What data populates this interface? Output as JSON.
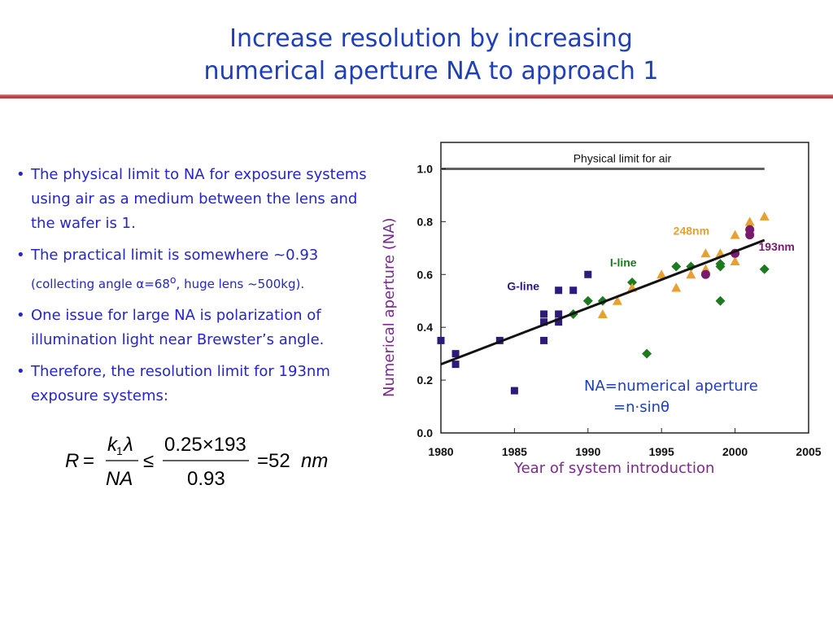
{
  "slide": {
    "title_line1": "Increase resolution by increasing",
    "title_line2": "numerical aperture NA to approach 1"
  },
  "bullets": [
    {
      "text": "The physical limit to NA for exposure systems using air as a medium between the lens and the wafer is 1."
    },
    {
      "text": "The  practical limit is somewhere ~0.93",
      "sub_pre": "(collecting angle ",
      "alpha": "α",
      "sub_mid": "=68",
      "sup": "o",
      "sub_post": ", huge lens ~500kg)."
    },
    {
      "text": "One issue for large NA is polarization of illumination light near Brewster’s angle."
    },
    {
      "text": "Therefore, the resolution limit for 193nm exposure systems:"
    }
  ],
  "formula": {
    "R": "R",
    "eq": "=",
    "k": "k",
    "k_sub": "1",
    "lambda": "λ",
    "NA": "NA",
    "le": "≤",
    "num": "0.25×193",
    "den": "0.93",
    "result": "=52",
    "unit": "nm"
  },
  "axis_labels": {
    "y": "Numerical aperture (NA)",
    "x": "Year of system introduction"
  },
  "note": {
    "line1": "NA=numerical aperture",
    "line2_pre": "=n·sin",
    "theta": "θ"
  },
  "chart_data": {
    "type": "scatter",
    "xlim": [
      1980,
      2005
    ],
    "ylim": [
      0.0,
      1.1
    ],
    "x_ticks": [
      1980,
      1985,
      1990,
      1995,
      2000,
      2005
    ],
    "y_ticks": [
      0.0,
      0.2,
      0.4,
      0.6,
      0.8,
      1.0
    ],
    "reference_line": {
      "label": "Physical limit for air",
      "y": 1.0
    },
    "trend_line": {
      "x": [
        1980,
        2002
      ],
      "y": [
        0.26,
        0.73
      ]
    },
    "series": [
      {
        "name": "G-line",
        "marker": "square",
        "color": "#2e1a78",
        "x": [
          1980,
          1981,
          1981,
          1984,
          1985,
          1987,
          1987,
          1987,
          1988,
          1988,
          1988,
          1989,
          1990
        ],
        "y": [
          0.35,
          0.3,
          0.26,
          0.35,
          0.16,
          0.45,
          0.42,
          0.35,
          0.54,
          0.45,
          0.42,
          0.54,
          0.6
        ]
      },
      {
        "name": "I-line",
        "marker": "diamond",
        "color": "#1e7a1e",
        "x": [
          1989,
          1990,
          1991,
          1993,
          1994,
          1996,
          1997,
          1999,
          1999,
          1999,
          2002
        ],
        "y": [
          0.45,
          0.5,
          0.5,
          0.57,
          0.3,
          0.63,
          0.63,
          0.63,
          0.64,
          0.5,
          0.62
        ]
      },
      {
        "name": "248nm",
        "marker": "triangle",
        "color": "#e8a030",
        "x": [
          1991,
          1992,
          1993,
          1995,
          1996,
          1997,
          1998,
          1998,
          1999,
          2000,
          2000,
          2001,
          2001,
          2002
        ],
        "y": [
          0.45,
          0.5,
          0.55,
          0.6,
          0.55,
          0.6,
          0.68,
          0.62,
          0.68,
          0.65,
          0.75,
          0.8,
          0.78,
          0.82
        ]
      },
      {
        "name": "193nm",
        "marker": "circle",
        "color": "#7a1a6e",
        "x": [
          1998,
          2000,
          2001,
          2001
        ],
        "y": [
          0.6,
          0.68,
          0.75,
          0.77
        ]
      }
    ]
  }
}
